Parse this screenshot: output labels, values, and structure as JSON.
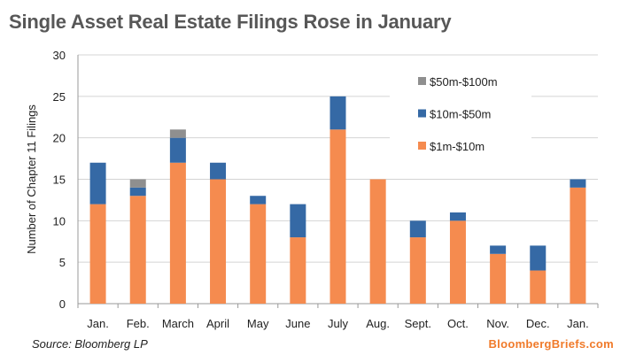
{
  "chart_data": {
    "type": "bar",
    "stacked": true,
    "title": "Single Asset Real Estate Filings Rose in January",
    "xlabel": "",
    "ylabel": "Number of Chapter 11 Filings",
    "ylim": [
      0,
      30
    ],
    "yticks": [
      0,
      5,
      10,
      15,
      20,
      25,
      30
    ],
    "grid": true,
    "legend_position": "top-right",
    "categories": [
      "Jan.",
      "Feb.",
      "March",
      "April",
      "May",
      "June",
      "July",
      "Aug.",
      "Sept.",
      "Oct.",
      "Nov.",
      "Dec.",
      "Jan."
    ],
    "series": [
      {
        "name": "$1m-$10m",
        "color": "#f58b4f",
        "values": [
          12,
          13,
          17,
          15,
          12,
          8,
          21,
          15,
          8,
          10,
          6,
          4,
          14
        ]
      },
      {
        "name": "$10m-$50m",
        "color": "#3569a5",
        "values": [
          5,
          1,
          3,
          2,
          1,
          4,
          4,
          0,
          2,
          1,
          1,
          3,
          1
        ]
      },
      {
        "name": "$50m-$100m",
        "color": "#8f8f8f",
        "values": [
          0,
          1,
          1,
          0,
          0,
          0,
          0,
          0,
          0,
          0,
          0,
          0,
          0
        ]
      }
    ]
  },
  "footer": {
    "source": "Source: Bloomberg LP",
    "brand": "BloombergBriefs.com"
  }
}
